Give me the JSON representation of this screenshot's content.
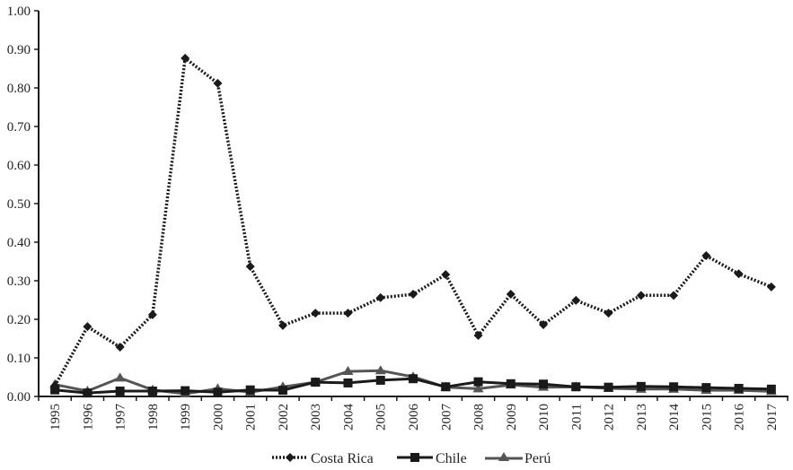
{
  "chart_data": {
    "type": "line",
    "title": "",
    "xlabel": "",
    "ylabel": "",
    "ylim": [
      0,
      1.0
    ],
    "yticks": [
      "0.00",
      "0.10",
      "0.20",
      "0.30",
      "0.40",
      "0.50",
      "0.60",
      "0.70",
      "0.80",
      "0.90",
      "1.00"
    ],
    "grid": false,
    "legend_position": "bottom",
    "categories": [
      "1995",
      "1996",
      "1997",
      "1998",
      "1999",
      "2000",
      "2001",
      "2002",
      "2003",
      "2004",
      "2005",
      "2006",
      "2007",
      "2008",
      "2009",
      "2010",
      "2011",
      "2012",
      "2013",
      "2014",
      "2015",
      "2016",
      "2017"
    ],
    "series": [
      {
        "name": "Costa Rica",
        "style": "dotted",
        "marker": "diamond",
        "color": "#1a1a1a",
        "values": [
          0.028,
          0.181,
          0.128,
          0.212,
          0.877,
          0.812,
          0.337,
          0.184,
          0.216,
          0.216,
          0.256,
          0.265,
          0.316,
          0.158,
          0.265,
          0.186,
          0.249,
          0.216,
          0.262,
          0.262,
          0.365,
          0.318,
          0.284
        ]
      },
      {
        "name": "Chile",
        "style": "solid",
        "marker": "square",
        "color": "#1a1a1a",
        "values": [
          0.017,
          0.009,
          0.014,
          0.014,
          0.015,
          0.011,
          0.017,
          0.016,
          0.037,
          0.035,
          0.042,
          0.046,
          0.025,
          0.038,
          0.033,
          0.032,
          0.025,
          0.024,
          0.026,
          0.025,
          0.023,
          0.021,
          0.019
        ]
      },
      {
        "name": "Perú",
        "style": "solid",
        "marker": "triangle",
        "color": "#555555",
        "values": [
          0.031,
          0.014,
          0.048,
          0.017,
          0.007,
          0.02,
          0.011,
          0.025,
          0.037,
          0.065,
          0.067,
          0.051,
          0.024,
          0.02,
          0.03,
          0.024,
          0.025,
          0.021,
          0.019,
          0.019,
          0.016,
          0.016,
          0.013
        ]
      }
    ]
  },
  "legend": {
    "items": [
      {
        "label": "Costa Rica"
      },
      {
        "label": "Chile"
      },
      {
        "label": "Perú"
      }
    ]
  }
}
